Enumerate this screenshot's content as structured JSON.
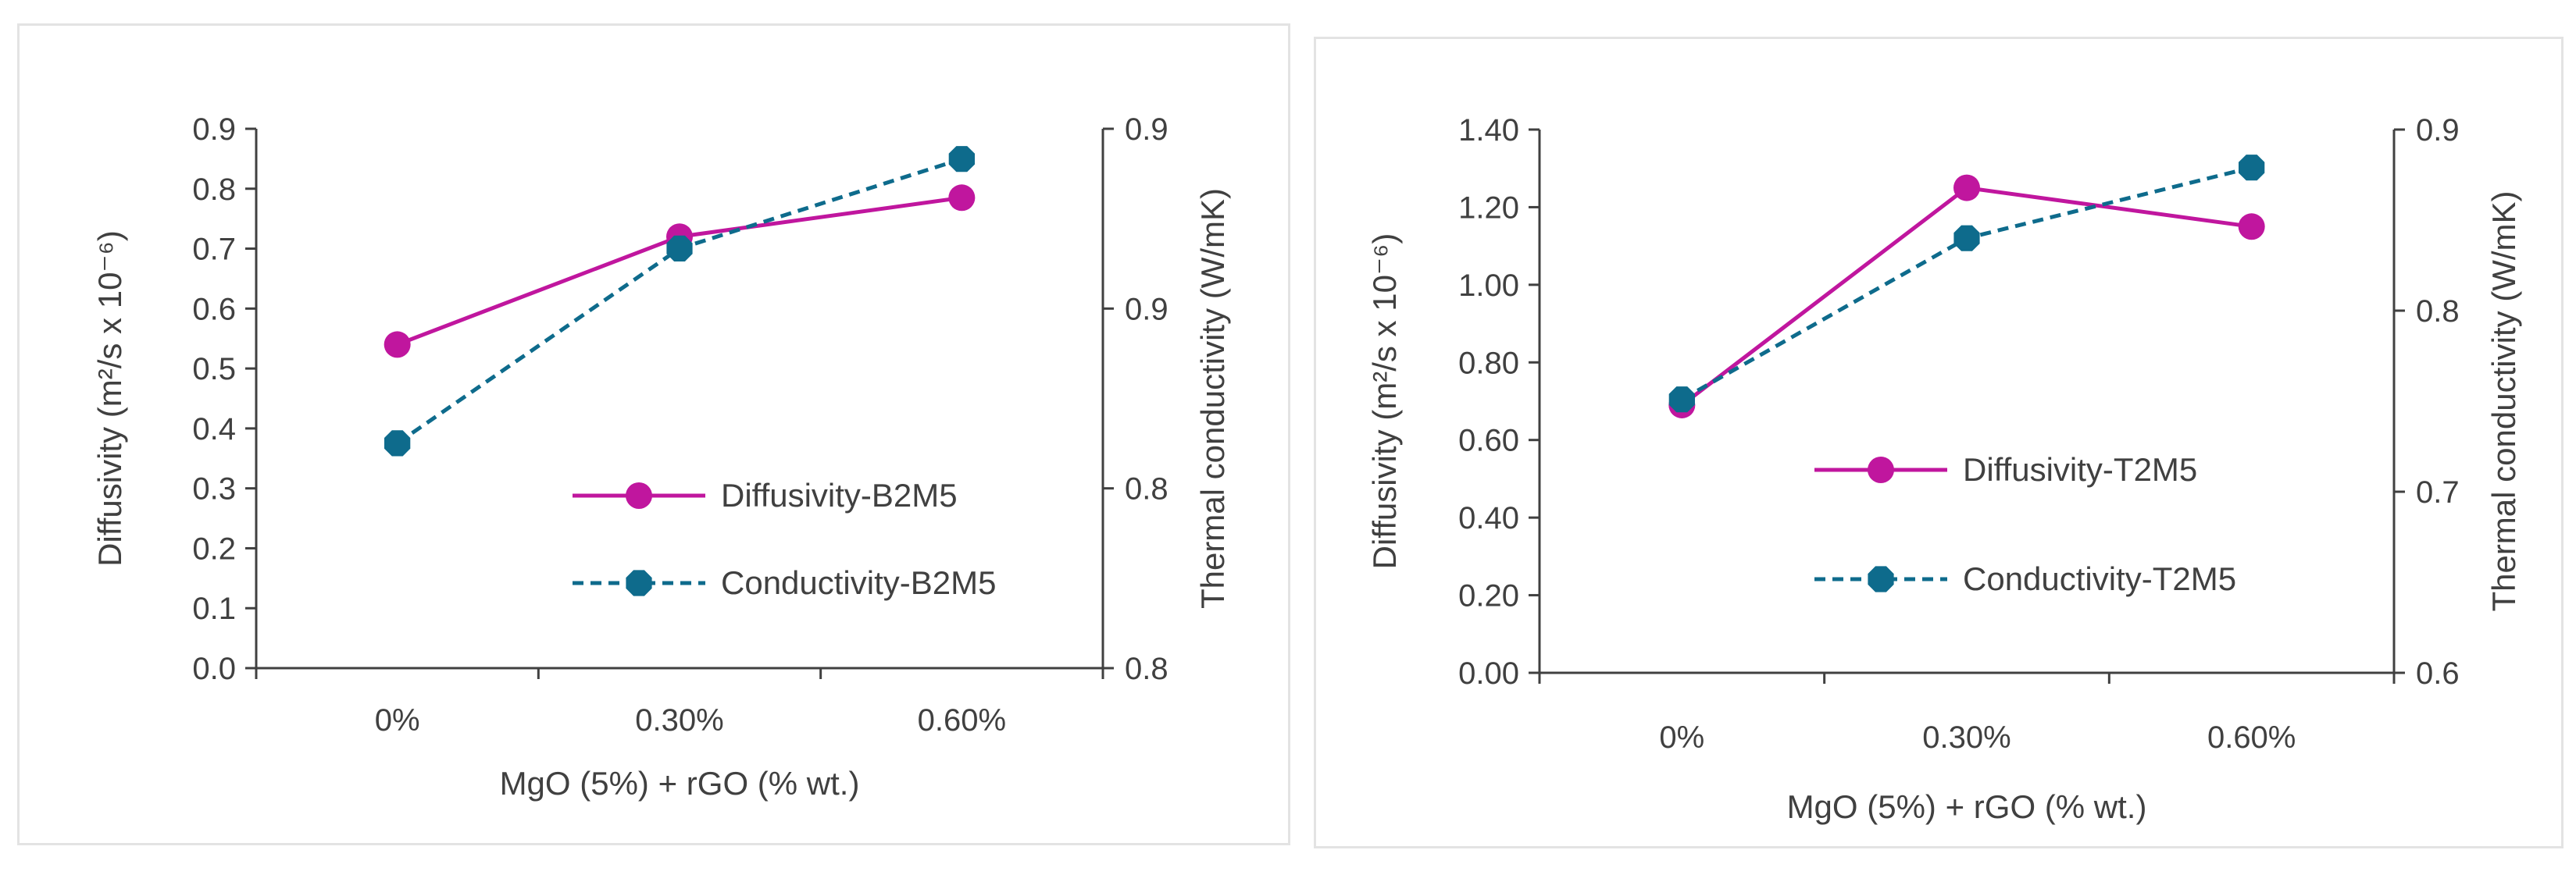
{
  "chart_data": [
    {
      "type": "line",
      "title": "",
      "categories": [
        "0%",
        "0.30%",
        "0.60%"
      ],
      "xlabel": "MgO (5%) + rGO (% wt.)",
      "ylabel": "Diffusivity (m²/s x 10⁻⁶)",
      "y2label": "Thermal conductivity (W/mK)",
      "ylim": [
        0,
        0.9
      ],
      "yticks": [
        "0.0",
        "0.1",
        "0.2",
        "0.3",
        "0.4",
        "0.5",
        "0.6",
        "0.7",
        "0.8",
        "0.9"
      ],
      "y2lim": [
        0.8,
        0.9
      ],
      "y2ticks": [
        "0.8",
        "0.8",
        "0.9",
        "0.9"
      ],
      "legend_position": "bottom-right",
      "series": [
        {
          "name": "Diffusivity-B2M5",
          "axis": "left",
          "style": "solid",
          "marker": "circle",
          "color": "#C0169E",
          "values": [
            0.54,
            0.72,
            0.785
          ]
        },
        {
          "name": "Conductivity-B2M5",
          "axis": "right",
          "style": "dashed",
          "marker": "octagon",
          "color": "#0E6B8C",
          "values": [
            0.8417,
            0.8778,
            0.8944
          ]
        }
      ]
    },
    {
      "type": "line",
      "title": "",
      "categories": [
        "0%",
        "0.30%",
        "0.60%"
      ],
      "xlabel": "MgO (5%) + rGO (% wt.)",
      "ylabel": "Diffusivity (m²/s x 10⁻⁶)",
      "y2label": "Thermal conductivity (W/mK)",
      "ylim": [
        0,
        1.4
      ],
      "yticks": [
        "0.00",
        "0.20",
        "0.40",
        "0.60",
        "0.80",
        "1.00",
        "1.20",
        "1.40"
      ],
      "y2lim": [
        0.6,
        0.9
      ],
      "y2ticks": [
        "0.6",
        "0.7",
        "0.8",
        "0.9"
      ],
      "legend_position": "middle-right",
      "series": [
        {
          "name": "Diffusivity-T2M5",
          "axis": "left",
          "style": "solid",
          "marker": "circle",
          "color": "#C0169E",
          "values": [
            0.69,
            1.25,
            1.15
          ]
        },
        {
          "name": "Conductivity-T2M5",
          "axis": "right",
          "style": "dashed",
          "marker": "octagon",
          "color": "#0E6B8C",
          "values": [
            0.751,
            0.84,
            0.879
          ]
        }
      ]
    }
  ]
}
